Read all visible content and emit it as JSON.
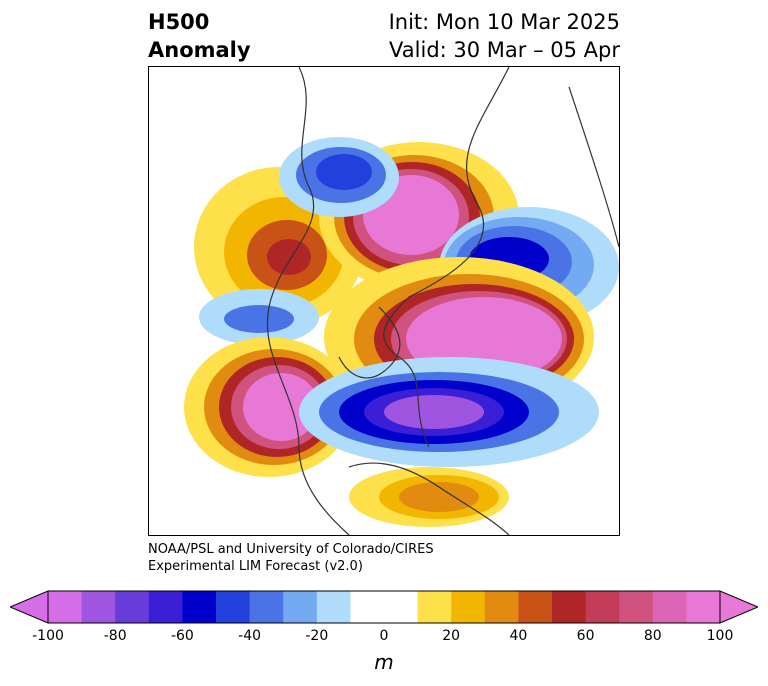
{
  "header": {
    "title_line1": "H500",
    "title_line2": "Anomaly",
    "init": "Init: Mon 10 Mar 2025",
    "valid": "Valid: 30 Mar – 05 Apr"
  },
  "credit": {
    "line1": "NOAA/PSL and University of Colorado/CIRES",
    "line2": "Experimental LIM Forecast (v2.0)"
  },
  "colorbar": {
    "ticks": [
      "-100",
      "-80",
      "-60",
      "-40",
      "-20",
      "0",
      "20",
      "40",
      "60",
      "80",
      "100"
    ],
    "unit": "m",
    "colors": [
      "#d66ee8",
      "#9f55e0",
      "#6a3bdb",
      "#3a1fd6",
      "#0000cc",
      "#2240dc",
      "#4a74e6",
      "#73aaf2",
      "#b0dcfb",
      "#ffffff",
      "#ffffff",
      "#fde04a",
      "#f2b600",
      "#e18c10",
      "#c95217",
      "#b02626",
      "#c23b57",
      "#d0527e",
      "#da66b5",
      "#e878d6"
    ]
  },
  "map": {
    "features": [
      {
        "kind": "anomaly-high",
        "name": "polar-high"
      },
      {
        "kind": "anomaly-high",
        "name": "north-pacific-high"
      },
      {
        "kind": "anomaly-high",
        "name": "north-atlantic-high"
      },
      {
        "kind": "anomaly-high",
        "name": "siberia-high"
      },
      {
        "kind": "anomaly-low",
        "name": "canada-low"
      },
      {
        "kind": "anomaly-low",
        "name": "asia-low"
      },
      {
        "kind": "anomaly-low",
        "name": "europe-low"
      }
    ]
  }
}
